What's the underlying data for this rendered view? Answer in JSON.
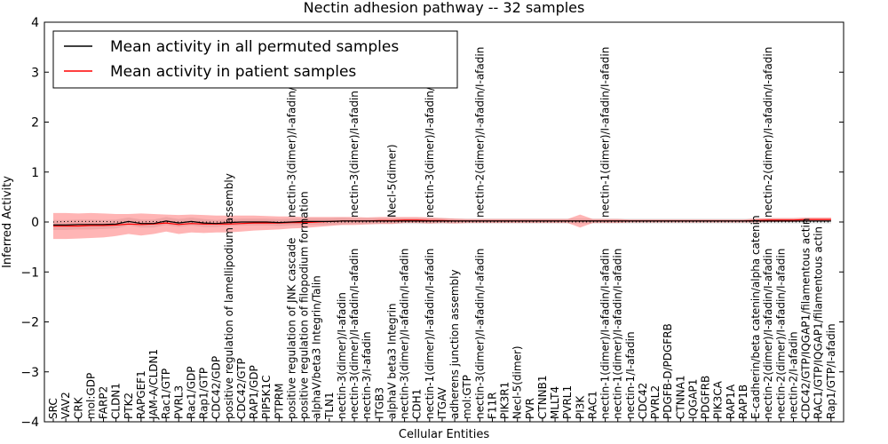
{
  "chart_data": {
    "type": "line",
    "title": "Nectin adhesion pathway -- 32 samples",
    "xlabel": "Cellular Entities",
    "ylabel": "Inferred Activity",
    "ylim": [
      -4,
      4
    ],
    "yticks": [
      -4,
      -3,
      -2,
      -1,
      0,
      1,
      2,
      3,
      4
    ],
    "ytick_labels": [
      "−4",
      "−3",
      "−2",
      "−1",
      "0",
      "1",
      "2",
      "3",
      "4"
    ],
    "legend_position": "top-left",
    "categories": [
      "SRC",
      "VAV2",
      "CRK",
      "mol:GDP",
      "FARP2",
      "CLDN1",
      "PTK2",
      "RAPGEF1",
      "JAM-A/CLDN1",
      "Rac1/GTP",
      "PVRL3",
      "Rac1/GDP",
      "Rap1/GTP",
      "CDC42/GDP",
      "positive regulation of lamellipodium assembly",
      "CDC42/GTP",
      "RAP1/GDP",
      "PIP5K1C",
      "PTPRM",
      "positive regulation of JNK cascade",
      "positive regulation of filopodium formation",
      "alphaV/beta3 Integrin/Talin",
      "TLN1",
      "nectin-3(dimer)/I-afadin",
      "nectin-3(dimer)/I-afadin/I-afadin",
      "nectin-3/I-afadin",
      "ITGB3",
      "alphaV beta3 Integrin",
      "nectin-3(dimer)/I-afadin/I-afadin",
      "CDH1",
      "nectin-1(dimer)/I-afadin/I-afadin",
      "ITGAV",
      "adherens junction assembly",
      "mol:GTP",
      "nectin-3(dimer)/I-afadin/I-afadin",
      "F11R",
      "PIK3R1",
      "Necl-5(dimer)",
      "PVR",
      "CTNNB1",
      "MLLT4",
      "PVRL1",
      "PI3K",
      "RAC1",
      "nectin-1(dimer)/I-afadin/I-afadin",
      "nectin-1(dimer)/I-afadin/I-afadin",
      "nectin-1/I-afadin",
      "CDC42",
      "PVRL2",
      "PDGFB-D/PDGFRB",
      "CTNNA1",
      "IQGAP1",
      "PDGFRB",
      "PIK3CA",
      "RAP1A",
      "RAP1B",
      "E-cadherin/beta catenin/alpha catenin",
      "nectin-2(dimer)/I-afadin/I-afadin",
      "nectin-2(dimer)/I-afadin/I-afadin",
      "nectin-2/I-afadin",
      "CDC42/GTP/IQGAP1/filamentous actin",
      "RAC1/GTP/IQGAP1/filamentous actin",
      "Rap1/GTP/I-afadin"
    ],
    "upper_labels": [
      {
        "index": 19,
        "text": "nectin-3(dimer)/I-afadin/I-afadin"
      },
      {
        "index": 24,
        "text": "nectin-3(dimer)/I-afadin"
      },
      {
        "index": 27,
        "text": "Necl-5(dimer)"
      },
      {
        "index": 30,
        "text": "nectin-3(dimer)/I-afadin/I-afadin"
      },
      {
        "index": 34,
        "text": "nectin-2(dimer)/I-afadin/I-afadin"
      },
      {
        "index": 44,
        "text": "nectin-1(dimer)/I-afadin/I-afadin"
      },
      {
        "index": 57,
        "text": "nectin-2(dimer)/I-afadin/I-afadin"
      }
    ],
    "series": [
      {
        "name": "Mean activity in all permuted samples",
        "color": "#000000",
        "values": [
          -0.06,
          -0.06,
          -0.05,
          -0.05,
          -0.05,
          -0.04,
          0.01,
          -0.03,
          -0.03,
          0.02,
          -0.02,
          0.01,
          -0.02,
          -0.03,
          -0.01,
          0.0,
          0.0,
          0.0,
          -0.01,
          0.0,
          0.01,
          0.01,
          0.01,
          0.02,
          0.02,
          0.02,
          0.02,
          0.02,
          0.02,
          0.02,
          0.02,
          0.02,
          0.02,
          0.02,
          0.02,
          0.02,
          0.02,
          0.02,
          0.02,
          0.02,
          0.02,
          0.02,
          0.02,
          0.02,
          0.02,
          0.02,
          0.02,
          0.02,
          0.02,
          0.02,
          0.02,
          0.02,
          0.02,
          0.02,
          0.02,
          0.02,
          0.02,
          0.02,
          0.02,
          0.02,
          0.02,
          0.02,
          0.02
        ],
        "spread": [
          0.1,
          0.1,
          0.1,
          0.1,
          0.09,
          0.09,
          0.08,
          0.08,
          0.08,
          0.08,
          0.08,
          0.08,
          0.08,
          0.07,
          0.07,
          0.07,
          0.07,
          0.07,
          0.07,
          0.07,
          0.07,
          0.07,
          0.07,
          0.07,
          0.06,
          0.06,
          0.06,
          0.06,
          0.06,
          0.06,
          0.06,
          0.06,
          0.05,
          0.05,
          0.05,
          0.05,
          0.05,
          0.05,
          0.05,
          0.05,
          0.05,
          0.05,
          0.05,
          0.05,
          0.05,
          0.05,
          0.05,
          0.05,
          0.05,
          0.05,
          0.05,
          0.05,
          0.05,
          0.05,
          0.05,
          0.05,
          0.05,
          0.05,
          0.05,
          0.05,
          0.05,
          0.05,
          0.05
        ]
      },
      {
        "name": "Mean activity in patient samples",
        "color": "#ff0000",
        "values": [
          -0.08,
          -0.08,
          -0.08,
          -0.07,
          -0.07,
          -0.06,
          -0.04,
          -0.05,
          -0.04,
          -0.02,
          -0.05,
          -0.03,
          -0.04,
          -0.04,
          -0.04,
          -0.03,
          -0.02,
          -0.02,
          -0.02,
          -0.01,
          -0.01,
          0.0,
          0.01,
          0.02,
          0.02,
          0.02,
          0.03,
          0.03,
          0.04,
          0.04,
          0.03,
          0.03,
          0.02,
          0.02,
          0.02,
          0.02,
          0.02,
          0.02,
          0.02,
          0.02,
          0.02,
          0.02,
          0.02,
          0.02,
          0.02,
          0.02,
          0.02,
          0.02,
          0.02,
          0.02,
          0.02,
          0.02,
          0.02,
          0.02,
          0.02,
          0.02,
          0.03,
          0.04,
          0.04,
          0.04,
          0.05,
          0.05,
          0.05
        ],
        "spread": [
          0.26,
          0.26,
          0.25,
          0.25,
          0.24,
          0.22,
          0.2,
          0.22,
          0.2,
          0.17,
          0.19,
          0.18,
          0.18,
          0.17,
          0.17,
          0.16,
          0.15,
          0.14,
          0.13,
          0.12,
          0.11,
          0.1,
          0.09,
          0.08,
          0.08,
          0.07,
          0.07,
          0.07,
          0.06,
          0.06,
          0.06,
          0.05,
          0.05,
          0.04,
          0.04,
          0.04,
          0.04,
          0.04,
          0.04,
          0.04,
          0.04,
          0.04,
          0.13,
          0.04,
          0.04,
          0.04,
          0.03,
          0.03,
          0.03,
          0.03,
          0.03,
          0.03,
          0.03,
          0.03,
          0.03,
          0.03,
          0.04,
          0.04,
          0.04,
          0.04,
          0.04,
          0.04,
          0.04
        ]
      }
    ],
    "dotted_reference": {
      "y_values": [
        0.0,
        0.01,
        0.01,
        0.01,
        0.01,
        0.0,
        0.0,
        0.0,
        0.01,
        0.0,
        0.0,
        0.0,
        0.0,
        0.0,
        0.0,
        0.0,
        0.0,
        0.0,
        0.0,
        0.0,
        0.0,
        0.0,
        0.0,
        0.0,
        0.0,
        0.0,
        0.0,
        0.0,
        0.0,
        0.0,
        0.0,
        0.0,
        0.0,
        0.0,
        0.0,
        0.0,
        0.0,
        0.0,
        0.0,
        0.0,
        0.0,
        0.0,
        0.0,
        0.0,
        0.0,
        0.0,
        0.0,
        0.0,
        0.0,
        0.0,
        0.0,
        0.0,
        0.0,
        0.0,
        0.0,
        0.0,
        0.0,
        0.0,
        0.0,
        0.0,
        0.0,
        0.0,
        0.0
      ]
    }
  }
}
